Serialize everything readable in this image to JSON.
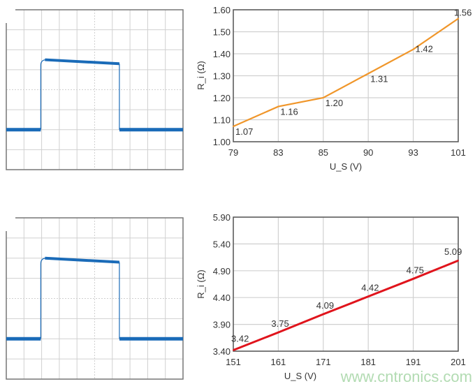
{
  "colors": {
    "scope_trace": "#1a6bb8",
    "grid": "#d0d0d0",
    "frame": "#777777",
    "series_top": "#f0962a",
    "series_bottom": "#e0141c"
  },
  "watermark": "www.cntronics.com",
  "scopes": [
    {
      "low": -2,
      "high": 1.5,
      "high_end": 1.3,
      "rise_div": 1.2,
      "fall_div": 6.4
    },
    {
      "low": -2,
      "high": 2.0,
      "high_end": 1.8,
      "rise_div": 1.2,
      "fall_div": 6.4
    }
  ],
  "chart_data": [
    {
      "type": "line",
      "title": "",
      "xlabel": "U_S (V)",
      "ylabel": "R_i (Ω)",
      "categories": [
        "79",
        "83",
        "85",
        "90",
        "93",
        "101"
      ],
      "values": [
        1.07,
        1.16,
        1.2,
        1.31,
        1.42,
        1.56
      ],
      "data_labels": [
        "1.07",
        "1.16",
        "1.20",
        "1.31",
        "1.42",
        "1.56"
      ],
      "yticks": [
        "1.00",
        "1.10",
        "1.20",
        "1.30",
        "1.40",
        "1.50",
        "1.60"
      ],
      "ylim": [
        1.0,
        1.6
      ],
      "grid": true,
      "color": "#f0962a"
    },
    {
      "type": "line",
      "title": "",
      "xlabel": "U_S (V)",
      "ylabel": "R_i (Ω)",
      "categories": [
        "151",
        "161",
        "171",
        "181",
        "191",
        "201"
      ],
      "values": [
        3.42,
        3.75,
        4.09,
        4.42,
        4.75,
        5.09
      ],
      "data_labels": [
        "3.42",
        "3.75",
        "4.09",
        "4.42",
        "4.75",
        "5.09"
      ],
      "yticks": [
        "3.40",
        "3.90",
        "4.40",
        "4.90",
        "5.40",
        "5.90"
      ],
      "ylim": [
        3.4,
        5.9
      ],
      "grid": true,
      "color": "#e0141c"
    }
  ]
}
